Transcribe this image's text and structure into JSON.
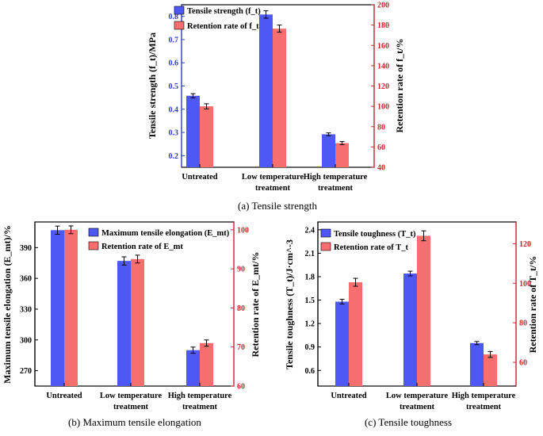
{
  "colors": {
    "blue": "#4d58f5",
    "red": "#f76e6e",
    "blue_axis": "#2f3ad6",
    "red_axis": "#c8282d"
  },
  "chart_data": [
    {
      "type": "bar",
      "title": "(a) Tensile strength",
      "categories": [
        "Untreated",
        "Low temperature treatment",
        "High temperature treatment"
      ],
      "category_lines": [
        [
          "Untreated"
        ],
        [
          "Low temperature",
          "treatment"
        ],
        [
          "High temperature",
          "treatment"
        ]
      ],
      "ylabel": "Tensile strength (f_t)/MPa",
      "y2label": "Retention rate of f_t/%",
      "ylim": [
        0.15,
        0.85
      ],
      "y2lim": [
        40,
        200
      ],
      "yticks": [
        "0.2",
        "0.3",
        "0.4",
        "0.5",
        "0.6",
        "0.7",
        "0.8"
      ],
      "y2ticks": [
        "40",
        "60",
        "80",
        "100",
        "120",
        "140",
        "160",
        "180",
        "200"
      ],
      "legend_position": "top-left",
      "series": [
        {
          "name": "Tensile strength (f_t)",
          "axis": "left",
          "values": [
            0.458,
            0.808,
            0.292
          ],
          "errors": [
            0.009,
            0.016,
            0.006
          ]
        },
        {
          "name": "Retention rate of f_t",
          "axis": "right",
          "values": [
            100,
            176.5,
            63.8
          ],
          "errors": [
            2.5,
            3.5,
            1.5
          ]
        }
      ]
    },
    {
      "type": "bar",
      "title": "(b) Maximum tensile elongation",
      "categories": [
        "Untreated",
        "Low temperature treatment",
        "High temperature treatment"
      ],
      "category_lines": [
        [
          "Untreated"
        ],
        [
          "Low temperature",
          "treatment"
        ],
        [
          "High temperature",
          "treatment"
        ]
      ],
      "ylabel": "Maximum tensile elongation (E_mt)/%",
      "y2label": "Retention rate of E_mt/%",
      "ylim": [
        255,
        415
      ],
      "y2lim": [
        60,
        102
      ],
      "yticks": [
        "270",
        "300",
        "330",
        "360",
        "390"
      ],
      "y2ticks": [
        "60",
        "70",
        "80",
        "90",
        "100"
      ],
      "legend_position": "top-right",
      "series": [
        {
          "name": "Maximum tensile elongation (E_mt)",
          "axis": "left",
          "values": [
            407,
            377,
            290
          ],
          "errors": [
            4,
            4,
            3
          ]
        },
        {
          "name": "Retention rate of E_mt",
          "axis": "right",
          "values": [
            100,
            92.5,
            71
          ],
          "errors": [
            1,
            1,
            0.8
          ]
        }
      ]
    },
    {
      "type": "bar",
      "title": "(c) Tensile toughness",
      "categories": [
        "Untreated",
        "Low temperature treatment",
        "High temperature treatment"
      ],
      "category_lines": [
        [
          "Untreated"
        ],
        [
          "Low temperature",
          "treatment"
        ],
        [
          "High temperature",
          "treatment"
        ]
      ],
      "ylabel": "Tensile toughness (T_t)/J·cm^-3",
      "y2label": "Retention rate of T_t/%",
      "ylim": [
        0.4,
        2.5
      ],
      "y2lim": [
        48,
        131
      ],
      "yticks": [
        "0.6",
        "0.9",
        "1.2",
        "1.5",
        "1.8",
        "2.1",
        "2.4"
      ],
      "y2ticks": [
        "60",
        "80",
        "100",
        "120"
      ],
      "legend_position": "top-left",
      "series": [
        {
          "name": "Tensile toughness (T_t)",
          "axis": "left",
          "values": [
            1.48,
            1.84,
            0.95
          ],
          "errors": [
            0.03,
            0.03,
            0.02
          ]
        },
        {
          "name": "Retention rate of T_t",
          "axis": "right",
          "values": [
            100.5,
            124,
            64
          ],
          "errors": [
            2,
            2.5,
            1.5
          ]
        }
      ]
    }
  ]
}
